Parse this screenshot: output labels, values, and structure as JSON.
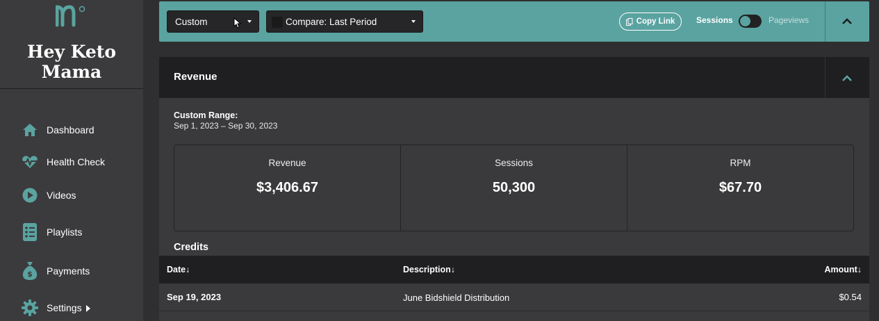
{
  "sidebar": {
    "brand_line1": "Hey Keto",
    "brand_line2": "Mama",
    "items": [
      {
        "label": "Dashboard",
        "icon": "home-icon"
      },
      {
        "label": "Health Check",
        "icon": "heartbeat-icon"
      },
      {
        "label": "Videos",
        "icon": "play-circle-icon"
      },
      {
        "label": "Playlists",
        "icon": "list-icon"
      },
      {
        "label": "Payments",
        "icon": "money-bag-icon"
      },
      {
        "label": "Settings",
        "icon": "gear-icon"
      }
    ]
  },
  "topbar": {
    "date_select": "Custom",
    "compare_select": "Compare: Last Period",
    "copy_link": "Copy Link",
    "toggle_on_label": "Sessions",
    "toggle_off_label": "Pageviews"
  },
  "panel": {
    "title": "Revenue",
    "range_label": "Custom Range:",
    "range_value": "Sep 1, 2023 – Sep 30, 2023",
    "stats": [
      {
        "label": "Revenue",
        "value": "$3,406.67"
      },
      {
        "label": "Sessions",
        "value": "50,300"
      },
      {
        "label": "RPM",
        "value": "$67.70"
      }
    ],
    "credits_title": "Credits",
    "table": {
      "headers": [
        "Date↓",
        "Description↓",
        "Amount↓"
      ],
      "rows": [
        {
          "date": "Sep 19, 2023",
          "description": "June Bidshield Distribution",
          "amount": "$0.54"
        }
      ]
    }
  },
  "colors": {
    "accent": "#5aa3a0",
    "sidebar_bg": "#3b3b3d",
    "header_bg": "#1f1e20",
    "panel_bg": "#3a3a3c"
  }
}
